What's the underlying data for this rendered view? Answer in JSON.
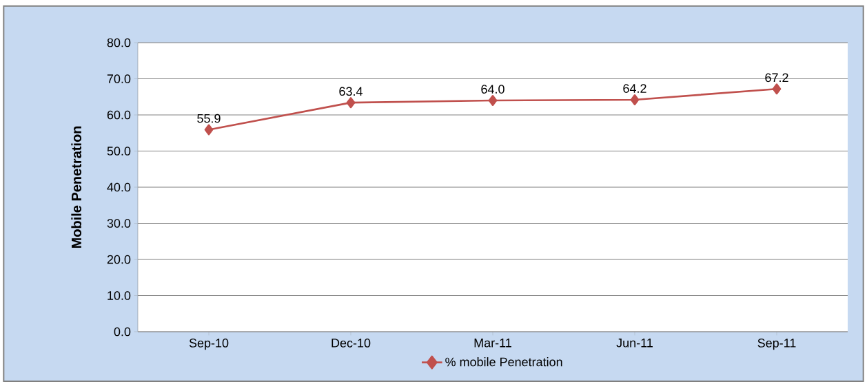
{
  "chart_data": {
    "type": "line",
    "ylabel": "Mobile Penetration",
    "categories": [
      "Sep-10",
      "Dec-10",
      "Mar-11",
      "Jun-11",
      "Sep-11"
    ],
    "series": [
      {
        "name": "% mobile  Penetration",
        "color": "#c0504d",
        "values": [
          55.9,
          63.4,
          64.0,
          64.2,
          67.2
        ],
        "value_labels": [
          "55.9",
          "63.4",
          "64.0",
          "64.2",
          "67.2"
        ]
      }
    ],
    "ylim": [
      0,
      80
    ],
    "yticks": [
      {
        "value": 0,
        "label": "0.0"
      },
      {
        "value": 10,
        "label": "10.0"
      },
      {
        "value": 20,
        "label": "20.0"
      },
      {
        "value": 30,
        "label": "30.0"
      },
      {
        "value": 40,
        "label": "40.0"
      },
      {
        "value": 50,
        "label": "50.0"
      },
      {
        "value": 60,
        "label": "60.0"
      },
      {
        "value": 70,
        "label": "70.0"
      },
      {
        "value": 80,
        "label": "80.0"
      }
    ],
    "grid": "y",
    "legend": "bottom",
    "marker": "diamond",
    "line_style": "solid"
  }
}
